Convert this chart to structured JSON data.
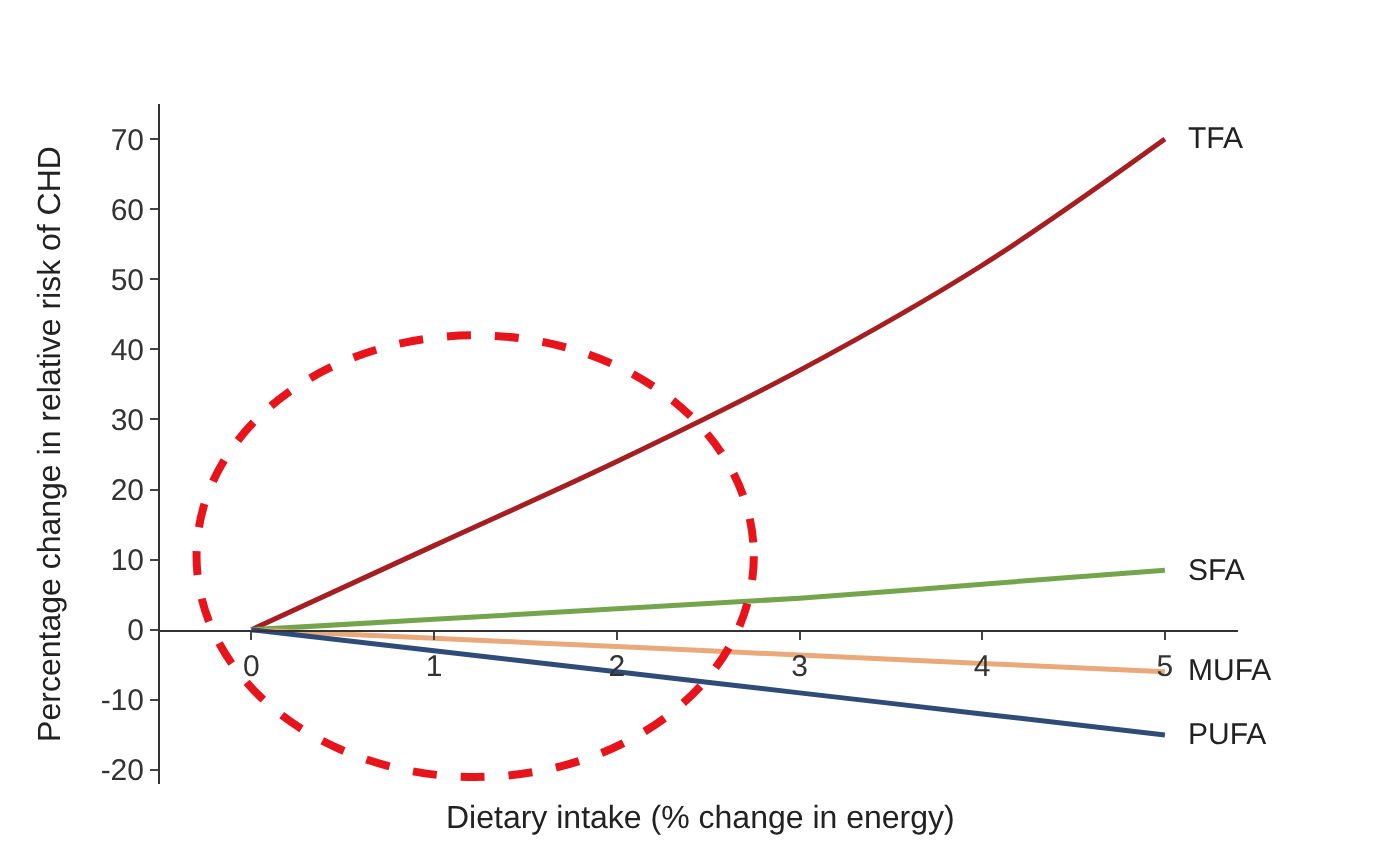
{
  "chart_data": {
    "type": "line",
    "xlabel": "Dietary intake (% change in energy)",
    "ylabel": "Percentage change in relative risk of CHD",
    "x": [
      0,
      1,
      2,
      3,
      4,
      5
    ],
    "series": [
      {
        "name": "TFA",
        "color": "#a51e22",
        "values": [
          0,
          12,
          24,
          37,
          52,
          70
        ]
      },
      {
        "name": "SFA",
        "color": "#74a44c",
        "values": [
          0,
          1.5,
          3,
          4.5,
          6.5,
          8.5
        ]
      },
      {
        "name": "MUFA",
        "color": "#e9a97a",
        "values": [
          0,
          -1.2,
          -2.4,
          -3.6,
          -4.8,
          -6
        ]
      },
      {
        "name": "PUFA",
        "color": "#2f4b78",
        "values": [
          0,
          -3,
          -6,
          -9,
          -12,
          -15
        ]
      }
    ],
    "xlim": [
      -0.5,
      5.4
    ],
    "xticks": [
      0,
      1,
      2,
      3,
      4,
      5
    ],
    "ylim": [
      -22,
      75
    ],
    "yticks": [
      -20,
      -10,
      0,
      10,
      20,
      30,
      40,
      50,
      60,
      70
    ],
    "legend": false,
    "marker": "none",
    "line_style": "solid"
  }
}
